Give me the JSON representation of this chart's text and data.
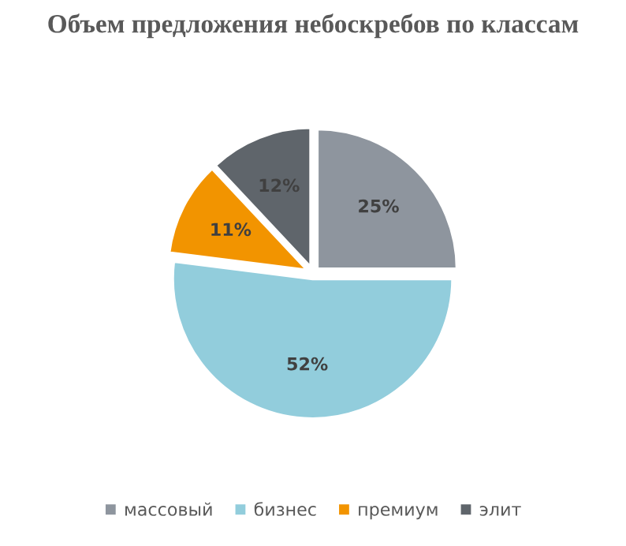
{
  "chart_data": {
    "type": "pie",
    "title": "Объем предложения небоскребов по классам",
    "categories": [
      "массовый",
      "бизнес",
      "премиум",
      "элит"
    ],
    "values": [
      25,
      52,
      11,
      12
    ],
    "colors": [
      "#8e959e",
      "#92cddc",
      "#f29400",
      "#5f656b"
    ],
    "value_labels": [
      "25%",
      "52%",
      "11%",
      "12%"
    ],
    "legend": "bottom"
  }
}
